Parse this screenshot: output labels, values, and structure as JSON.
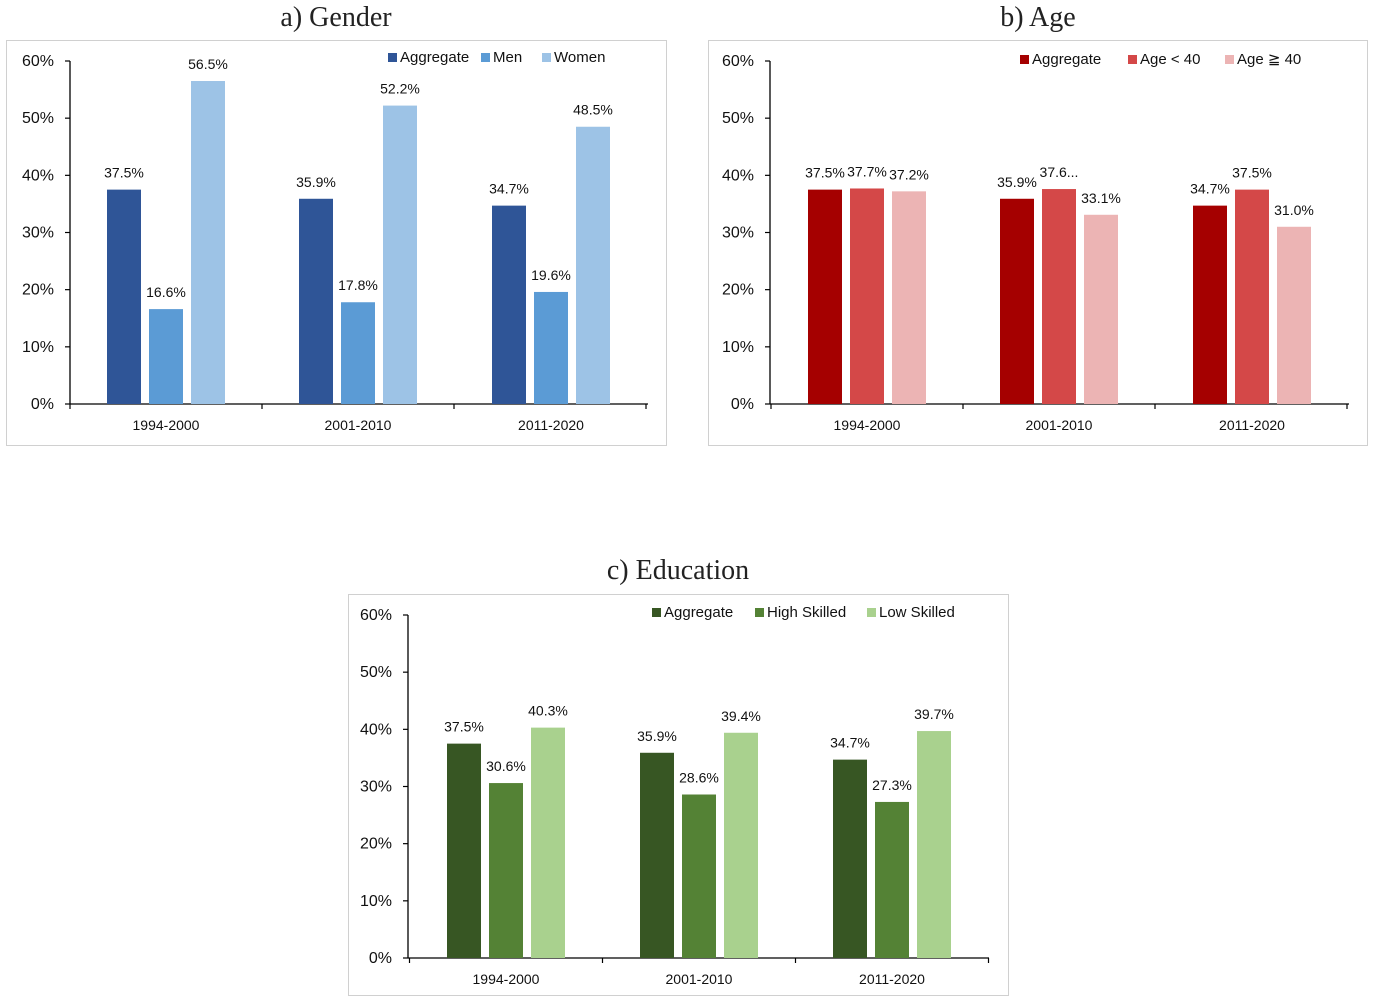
{
  "chart_data": [
    {
      "type": "bar",
      "title": "a) Gender",
      "categories": [
        "1994-2000",
        "2001-2010",
        "2011-2020"
      ],
      "series": [
        {
          "name": "Aggregate",
          "values": [
            37.5,
            35.9,
            34.7
          ],
          "labels": [
            "37.5%",
            "35.9%",
            "34.7%"
          ],
          "color": "#2f5597"
        },
        {
          "name": "Men",
          "values": [
            16.6,
            17.8,
            19.6
          ],
          "labels": [
            "16.6%",
            "17.8%",
            "19.6%"
          ],
          "color": "#5b9bd5"
        },
        {
          "name": "Women",
          "values": [
            56.5,
            52.2,
            48.5
          ],
          "labels": [
            "56.5%",
            "52.2%",
            "48.5%"
          ],
          "color": "#9dc3e6"
        }
      ],
      "ylim": [
        0,
        60
      ],
      "yticks": [
        "0%",
        "10%",
        "20%",
        "30%",
        "40%",
        "50%",
        "60%"
      ],
      "grid": false,
      "legend": "top-right"
    },
    {
      "type": "bar",
      "title": "b) Age",
      "categories": [
        "1994-2000",
        "2001-2010",
        "2011-2020"
      ],
      "series": [
        {
          "name": "Aggregate",
          "values": [
            37.5,
            35.9,
            34.7
          ],
          "labels": [
            "37.5%",
            "35.9%",
            "34.7%"
          ],
          "color": "#a50000"
        },
        {
          "name": "Age < 40",
          "values": [
            37.7,
            37.6,
            37.5
          ],
          "labels": [
            "37.7%",
            "37.6...",
            "37.5%"
          ],
          "color": "#d44848"
        },
        {
          "name": "Age ≧ 40",
          "values": [
            37.2,
            33.1,
            31.0
          ],
          "labels": [
            "37.2%",
            "33.1%",
            "31.0%"
          ],
          "color": "#ecb4b4"
        }
      ],
      "ylim": [
        0,
        60
      ],
      "yticks": [
        "0%",
        "10%",
        "20%",
        "30%",
        "40%",
        "50%",
        "60%"
      ],
      "grid": false,
      "legend": "top-right"
    },
    {
      "type": "bar",
      "title": "c) Education",
      "categories": [
        "1994-2000",
        "2001-2010",
        "2011-2020"
      ],
      "series": [
        {
          "name": "Aggregate",
          "values": [
            37.5,
            35.9,
            34.7
          ],
          "labels": [
            "37.5%",
            "35.9%",
            "34.7%"
          ],
          "color": "#375623"
        },
        {
          "name": "High Skilled",
          "values": [
            30.6,
            28.6,
            27.3
          ],
          "labels": [
            "30.6%",
            "28.6%",
            "27.3%"
          ],
          "color": "#548235"
        },
        {
          "name": "Low Skilled",
          "values": [
            40.3,
            39.4,
            39.7
          ],
          "labels": [
            "40.3%",
            "39.4%",
            "39.7%"
          ],
          "color": "#a9d18e"
        }
      ],
      "ylim": [
        0,
        60
      ],
      "yticks": [
        "0%",
        "10%",
        "20%",
        "30%",
        "40%",
        "50%",
        "60%"
      ],
      "grid": false,
      "legend": "top-right"
    }
  ]
}
